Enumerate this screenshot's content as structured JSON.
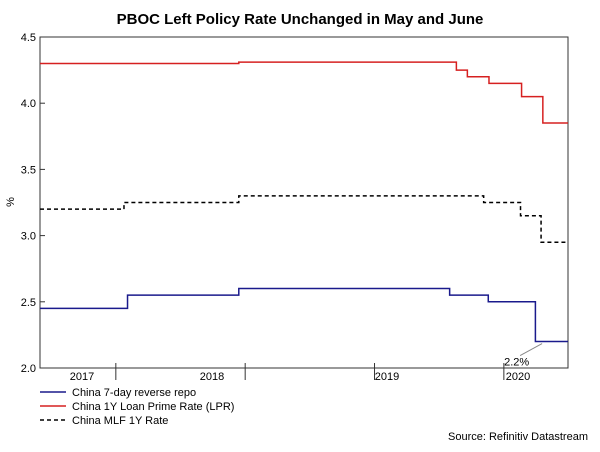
{
  "chart_data": {
    "type": "line",
    "title": "PBOC Left Policy Rate Unchanged in May and June",
    "ylabel": "%",
    "xlabel": "",
    "ylim": [
      2.0,
      4.5
    ],
    "xlim": [
      "2016-06-01",
      "2020-06-30"
    ],
    "y_ticks": [
      "2.0",
      "2.5",
      "3.0",
      "3.5",
      "4.0",
      "4.5"
    ],
    "x_ticks": [
      {
        "label": "2017",
        "date": "2017-01-01"
      },
      {
        "label": "2018",
        "date": "2018-01-01"
      },
      {
        "label": "2019",
        "date": "2019-01-01"
      },
      {
        "label": "2020",
        "date": "2020-01-01"
      }
    ],
    "grid": false,
    "legend_position": "bottom-left",
    "annotation": {
      "text": "2.2%",
      "date": "2020-04-01",
      "value": 2.2
    },
    "series": [
      {
        "name": "China 7-day reverse repo",
        "color": "#1a1a8c",
        "style": "solid",
        "step": true,
        "points": [
          {
            "date": "2016-06-01",
            "value": 2.45
          },
          {
            "date": "2017-02-03",
            "value": 2.55
          },
          {
            "date": "2017-12-14",
            "value": 2.6
          },
          {
            "date": "2019-08-01",
            "value": 2.55
          },
          {
            "date": "2019-11-18",
            "value": 2.5
          },
          {
            "date": "2020-03-30",
            "value": 2.2
          },
          {
            "date": "2020-06-30",
            "value": 2.2
          }
        ]
      },
      {
        "name": "China 1Y Loan Prime Rate (LPR)",
        "color": "#d62020",
        "style": "solid",
        "step": true,
        "points": [
          {
            "date": "2016-06-01",
            "value": 4.3
          },
          {
            "date": "2017-12-14",
            "value": 4.31
          },
          {
            "date": "2019-08-20",
            "value": 4.25
          },
          {
            "date": "2019-09-20",
            "value": 4.2
          },
          {
            "date": "2019-11-20",
            "value": 4.15
          },
          {
            "date": "2020-02-20",
            "value": 4.05
          },
          {
            "date": "2020-04-20",
            "value": 3.85
          },
          {
            "date": "2020-06-30",
            "value": 3.85
          }
        ]
      },
      {
        "name": "China MLF 1Y Rate",
        "color": "#000000",
        "style": "dashed",
        "step": true,
        "points": [
          {
            "date": "2016-06-01",
            "value": 3.2
          },
          {
            "date": "2017-01-24",
            "value": 3.25
          },
          {
            "date": "2017-12-14",
            "value": 3.3
          },
          {
            "date": "2019-11-05",
            "value": 3.25
          },
          {
            "date": "2020-02-17",
            "value": 3.15
          },
          {
            "date": "2020-04-15",
            "value": 2.95
          },
          {
            "date": "2020-06-30",
            "value": 2.95
          }
        ]
      }
    ]
  },
  "source": "Source: Refinitiv Datastream"
}
